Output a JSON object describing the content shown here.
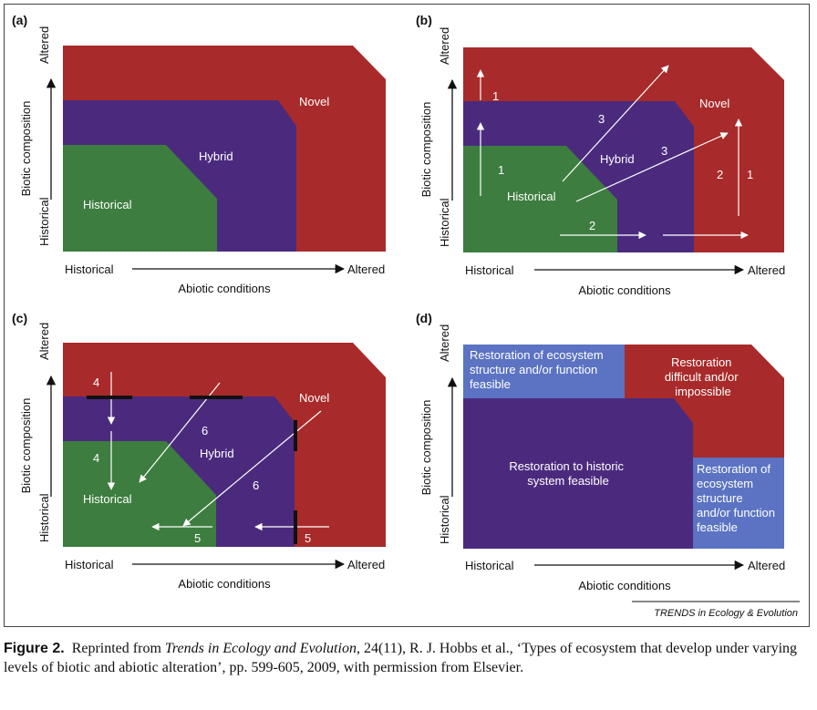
{
  "colors": {
    "novel": "#a82a2a",
    "hybrid": "#4b2a7e",
    "historical": "#3d7d3f",
    "restoration_blue": "#5b73c2",
    "arrow": "#ffffff",
    "barrier": "#111111"
  },
  "axes": {
    "y_label": "Biotic composition",
    "y_low": "Historical",
    "y_high": "Altered",
    "x_label": "Abiotic conditions",
    "x_low": "Historical",
    "x_high": "Altered"
  },
  "panels": {
    "a": {
      "letter": "(a)",
      "labels": {
        "novel": "Novel",
        "hybrid": "Hybrid",
        "historical": "Historical"
      }
    },
    "b": {
      "letter": "(b)",
      "labels": {
        "novel": "Novel",
        "hybrid": "Hybrid",
        "historical": "Historical"
      },
      "arrow_numbers": [
        "1",
        "1",
        "3",
        "3",
        "1",
        "2",
        "2"
      ]
    },
    "c": {
      "letter": "(c)",
      "labels": {
        "novel": "Novel",
        "hybrid": "Hybrid",
        "historical": "Historical"
      },
      "arrow_numbers": [
        "4",
        "4",
        "6",
        "6",
        "5",
        "5"
      ]
    },
    "d": {
      "letter": "(d)",
      "structure_feasible": [
        "Restoration of ecosystem",
        "structure and/or function",
        "feasible"
      ],
      "difficult": [
        "Restoration",
        "difficult and/or",
        "impossible"
      ],
      "historic_feasible": [
        "Restoration to historic",
        "system feasible"
      ],
      "structure_feasible_right": [
        "Restoration of",
        "ecosystem",
        "structure",
        "and/or function",
        "feasible"
      ]
    }
  },
  "journal": "TRENDS in Ecology & Evolution",
  "caption": {
    "label": "Figure 2.",
    "text_before_title": "Reprinted from",
    "journal_title": "Trends in Ecology and Evolution",
    "text_after_title": ", 24(11), R. J. Hobbs et al., ‘Types of ecosystem that develop under varying levels of biotic and abiotic alteration’, pp. 599-605, 2009, with permission from Elsevier."
  }
}
